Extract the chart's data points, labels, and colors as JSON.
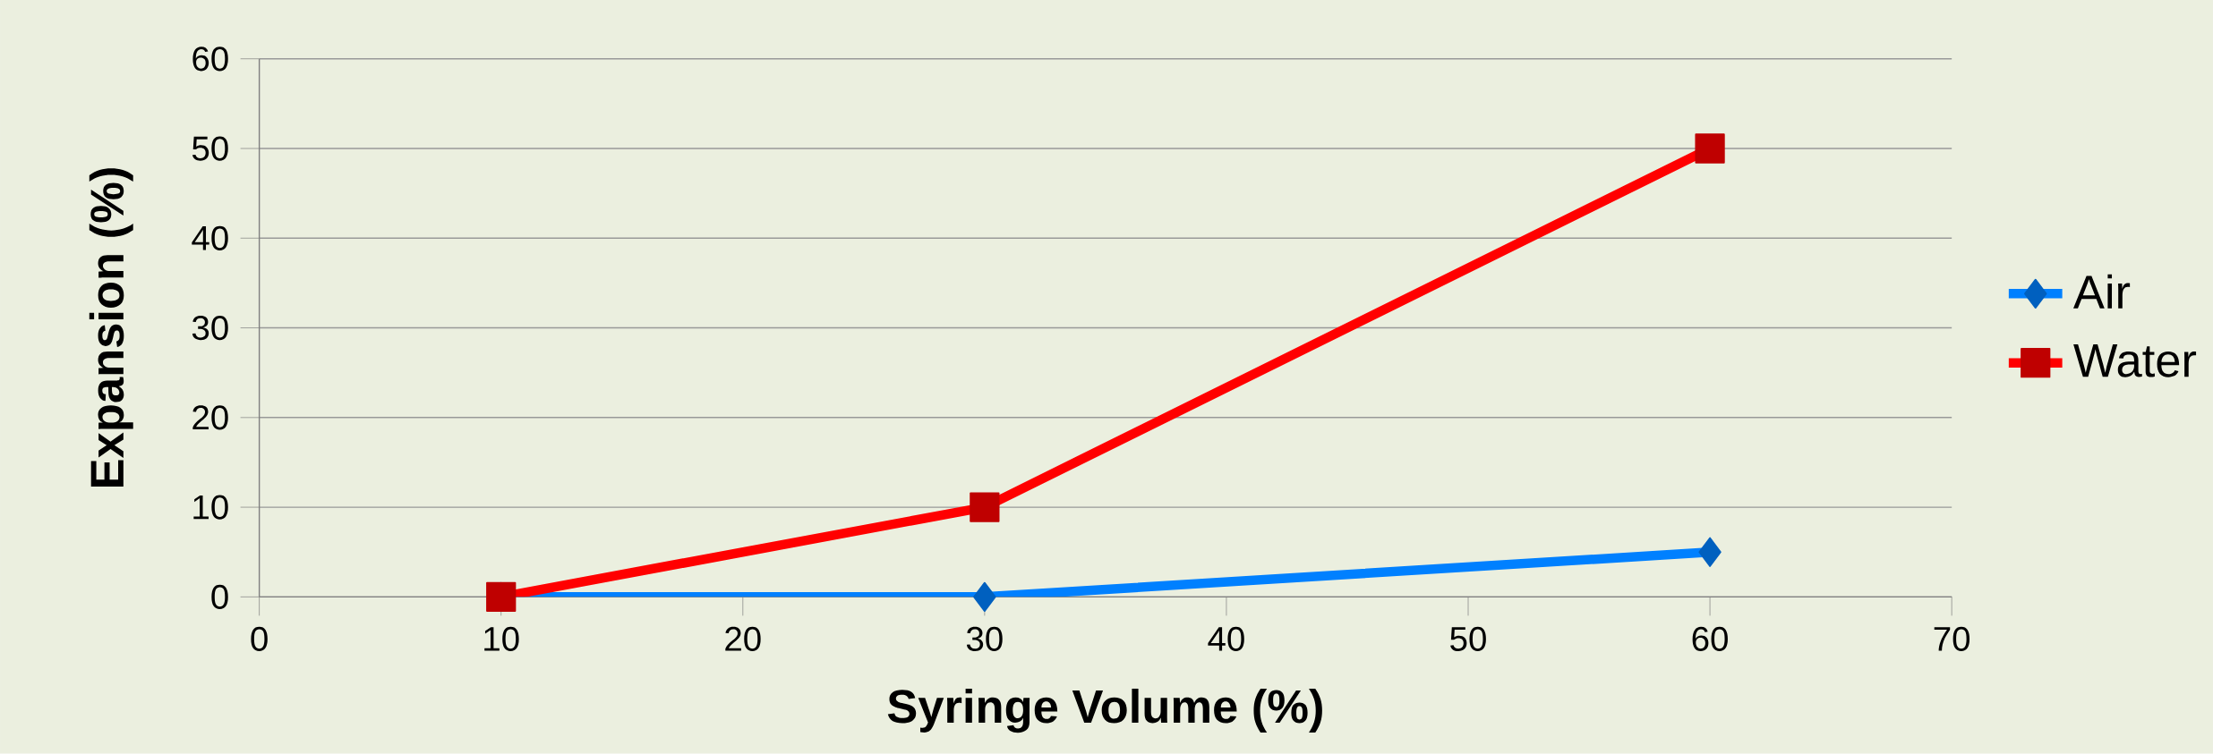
{
  "chart_data": {
    "type": "line",
    "xlabel": "Syringe Volume (%)",
    "ylabel": "Expansion (%)",
    "x": [
      10,
      30,
      60
    ],
    "series": [
      {
        "name": "Air",
        "color": "#0080ff",
        "values": [
          0,
          0,
          5
        ],
        "marker": "diamond"
      },
      {
        "name": "Water",
        "color": "#ff0000",
        "values": [
          0,
          10,
          50
        ],
        "marker": "square"
      }
    ],
    "xlim": [
      0,
      70
    ],
    "xticks": [
      0,
      10,
      20,
      30,
      40,
      50,
      60,
      70
    ],
    "ylim": [
      0,
      60
    ],
    "yticks": [
      0,
      10,
      20,
      30,
      40,
      50,
      60
    ],
    "grid": "y",
    "legend": "right",
    "line_style": "solid"
  }
}
